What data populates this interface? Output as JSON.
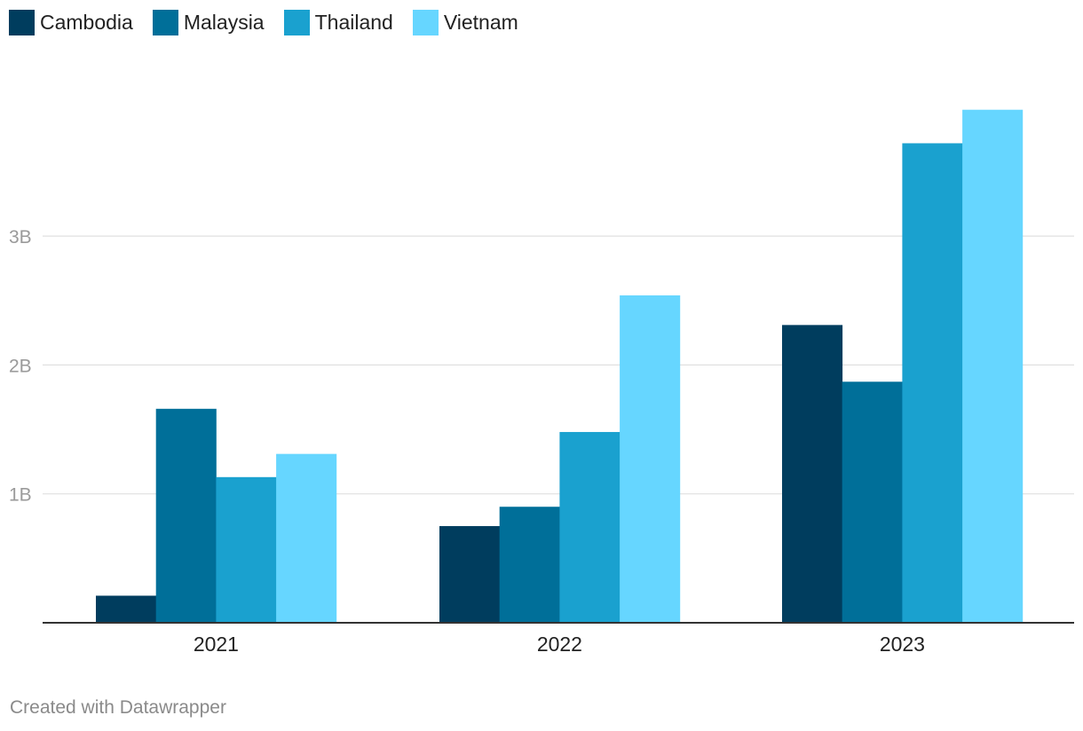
{
  "chart_data": {
    "type": "bar",
    "categories": [
      "2021",
      "2022",
      "2023"
    ],
    "series": [
      {
        "name": "Cambodia",
        "color": "#003d5e",
        "values": [
          0.21,
          0.75,
          2.31
        ]
      },
      {
        "name": "Malaysia",
        "color": "#006f99",
        "values": [
          1.66,
          0.9,
          1.87
        ]
      },
      {
        "name": "Thailand",
        "color": "#1aa1cf",
        "values": [
          1.13,
          1.48,
          3.72
        ]
      },
      {
        "name": "Vietnam",
        "color": "#66d6ff",
        "values": [
          1.31,
          2.54,
          3.98
        ]
      }
    ],
    "y_unit": "B",
    "yticks": [
      1,
      2,
      3
    ],
    "ytick_labels": [
      "1B",
      "2B",
      "3B"
    ],
    "ylim": [
      0,
      4.1
    ],
    "gridlines": true,
    "legend_position": "top-left"
  },
  "footer": {
    "credit": "Created with Datawrapper"
  }
}
